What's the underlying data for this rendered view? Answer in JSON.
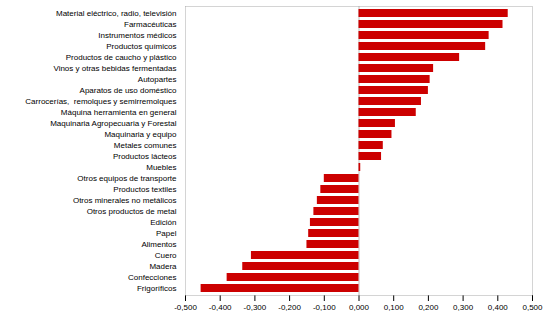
{
  "chart_data": {
    "type": "bar",
    "orientation": "horizontal",
    "categories": [
      "Material eléctrico, radio, televisión",
      "Farmacéuticas",
      "Instrumentos médicos",
      "Productos químicos",
      "Productos de caucho y plástico",
      "Vinos y otras bebidas fermentadas",
      "Autopartes",
      "Aparatos de uso doméstico",
      "Carrocerías,  remolques y semirremolques",
      "Máquina herramienta en general",
      "Maquinaria Agropecuaria y Forestal",
      "Maquinaria y equipo",
      "Metales comunes",
      "Productos lácteos",
      "Muebles",
      "Otros equipos de transporte",
      "Productos textiles",
      "Otros minerales no metálicos",
      "Otros productos de metal",
      "Edición",
      "Papel",
      "Alimentos",
      "Cuero",
      "Madera",
      "Confecciones",
      "Frigoríficos"
    ],
    "values": [
      0.43,
      0.415,
      0.375,
      0.365,
      0.29,
      0.215,
      0.205,
      0.2,
      0.18,
      0.165,
      0.105,
      0.095,
      0.07,
      0.065,
      0.005,
      -0.1,
      -0.11,
      -0.12,
      -0.13,
      -0.14,
      -0.145,
      -0.15,
      -0.31,
      -0.335,
      -0.38,
      -0.455
    ],
    "color": "#cc0000",
    "xlim": [
      -0.5,
      0.5
    ],
    "xticks": [
      {
        "value": -0.5,
        "label": "-0,500"
      },
      {
        "value": -0.4,
        "label": "-0,400"
      },
      {
        "value": -0.3,
        "label": "-0,300"
      },
      {
        "value": -0.2,
        "label": "-0,200"
      },
      {
        "value": -0.1,
        "label": "-0,100"
      },
      {
        "value": 0.0,
        "label": "0,000"
      },
      {
        "value": 0.1,
        "label": "0,100"
      },
      {
        "value": 0.2,
        "label": "0,200"
      },
      {
        "value": 0.3,
        "label": "0,300"
      },
      {
        "value": 0.4,
        "label": "0,400"
      },
      {
        "value": 0.5,
        "label": "0,500"
      }
    ],
    "grid": false
  }
}
